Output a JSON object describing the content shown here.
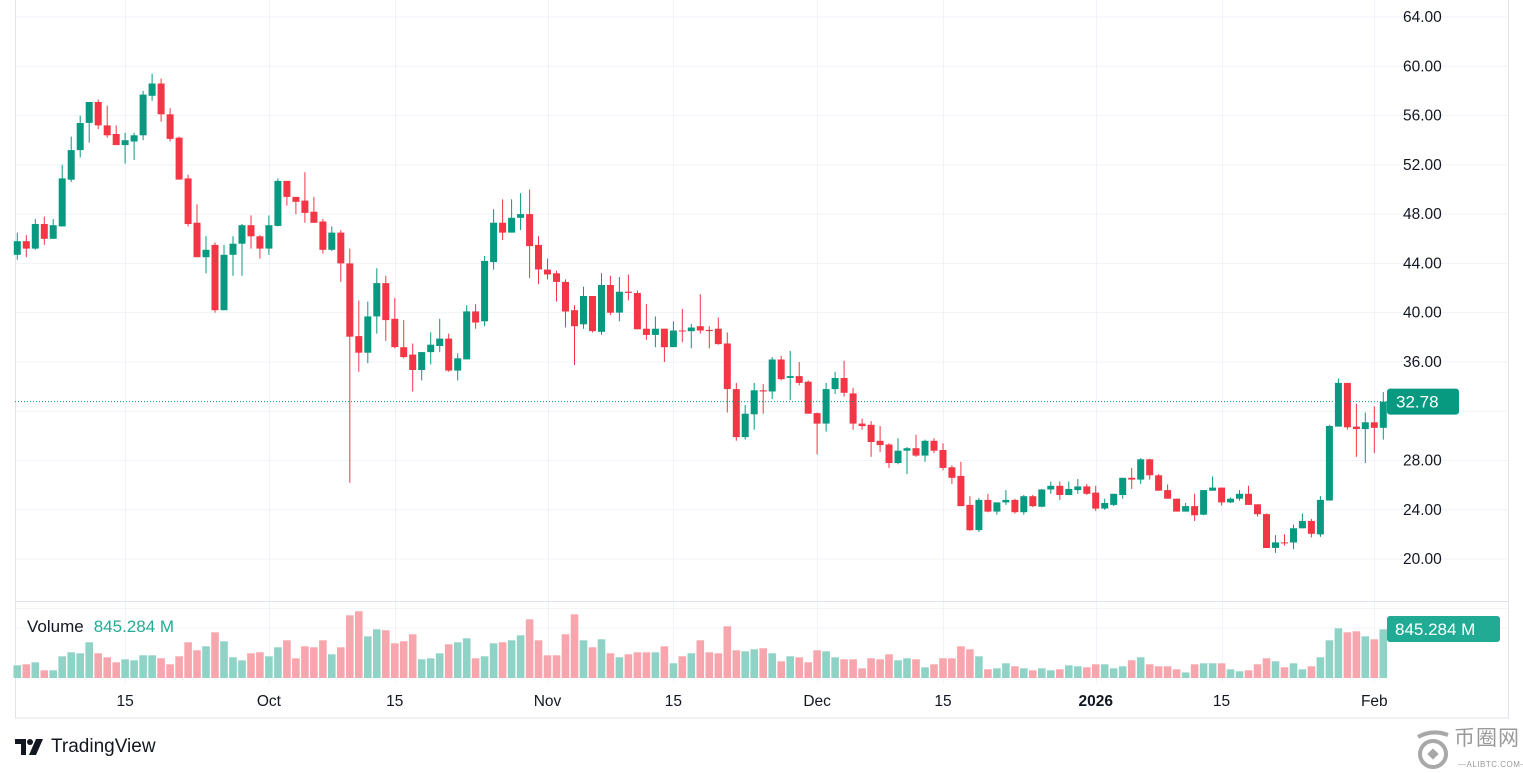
{
  "chart_data": {
    "type": "candlestick",
    "interval": "1D",
    "colors": {
      "up": "#089981",
      "down": "#f23645",
      "up_volume": "#8fd3c6",
      "down_volume": "#f8a6ad",
      "last_price_badge": "#089981",
      "volume_badge": "#22ab94",
      "grid": "#f0f3fa"
    },
    "y_ticks": [
      "64.00",
      "60.00",
      "56.00",
      "52.00",
      "48.00",
      "44.00",
      "40.00",
      "36.00",
      "28.00",
      "24.00",
      "20.00"
    ],
    "y_tick_values": [
      64,
      60,
      56,
      52,
      48,
      44,
      40,
      36,
      28,
      24,
      20
    ],
    "ylim": [
      16,
      65.4
    ],
    "x_ticks": [
      {
        "label": "15",
        "date": "2025-09-15",
        "bold": false
      },
      {
        "label": "Oct",
        "date": "2025-10-01",
        "bold": false
      },
      {
        "label": "15",
        "date": "2025-10-15",
        "bold": false
      },
      {
        "label": "Nov",
        "date": "2025-11-01",
        "bold": false
      },
      {
        "label": "15",
        "date": "2025-11-15",
        "bold": false
      },
      {
        "label": "Dec",
        "date": "2025-12-01",
        "bold": false
      },
      {
        "label": "15",
        "date": "2025-12-15",
        "bold": false
      },
      {
        "label": "2026",
        "date": "2026-01-01",
        "bold": true
      },
      {
        "label": "15",
        "date": "2026-01-15",
        "bold": false
      },
      {
        "label": "Feb",
        "date": "2026-02-01",
        "bold": false
      }
    ],
    "last_price": "32.78",
    "last_price_value": 32.78,
    "volume_label": "Volume",
    "volume_value": "845.284 M",
    "volume_unit": "M",
    "columns": [
      "date",
      "open",
      "high",
      "low",
      "close",
      "volume"
    ],
    "candles": [
      [
        "2025-09-03",
        44.7,
        46.5,
        44.3,
        45.8,
        220
      ],
      [
        "2025-09-04",
        45.8,
        46.3,
        44.5,
        45.2,
        237
      ],
      [
        "2025-09-05",
        45.2,
        47.6,
        45.1,
        47.2,
        272
      ],
      [
        "2025-09-06",
        47.2,
        47.8,
        45.5,
        46.0,
        133
      ],
      [
        "2025-09-07",
        46.0,
        47.6,
        46.0,
        47.1,
        133
      ],
      [
        "2025-09-08",
        47.0,
        52.0,
        47.0,
        50.9,
        376
      ],
      [
        "2025-09-09",
        50.8,
        54.3,
        50.6,
        53.2,
        446
      ],
      [
        "2025-09-10",
        53.2,
        56.0,
        52.6,
        55.4,
        428
      ],
      [
        "2025-09-11",
        55.4,
        57.1,
        53.8,
        57.1,
        620
      ],
      [
        "2025-09-12",
        57.1,
        57.3,
        54.9,
        55.2,
        428
      ],
      [
        "2025-09-13",
        55.2,
        56.8,
        54.2,
        54.4,
        359
      ],
      [
        "2025-09-14",
        54.5,
        55.2,
        53.6,
        53.6,
        272
      ],
      [
        "2025-09-15",
        53.6,
        54.6,
        52.1,
        54.0,
        324
      ],
      [
        "2025-09-16",
        53.9,
        54.6,
        52.4,
        54.4,
        307
      ],
      [
        "2025-09-17",
        54.4,
        58.0,
        54.0,
        57.7,
        394
      ],
      [
        "2025-09-18",
        57.6,
        59.4,
        57.2,
        58.6,
        394
      ],
      [
        "2025-09-19",
        58.6,
        59.0,
        55.5,
        56.1,
        342
      ],
      [
        "2025-09-20",
        56.1,
        56.6,
        53.9,
        54.1,
        237
      ],
      [
        "2025-09-21",
        54.2,
        54.3,
        50.8,
        50.8,
        376
      ],
      [
        "2025-09-22",
        50.9,
        51.2,
        47.0,
        47.2,
        620
      ],
      [
        "2025-09-23",
        47.3,
        48.8,
        44.5,
        44.5,
        481
      ],
      [
        "2025-09-24",
        44.5,
        46.2,
        43.2,
        45.1,
        550
      ],
      [
        "2025-09-25",
        45.5,
        45.7,
        40.0,
        40.2,
        793
      ],
      [
        "2025-09-26",
        40.2,
        45.5,
        40.2,
        44.7,
        637
      ],
      [
        "2025-09-27",
        44.7,
        46.2,
        43.0,
        45.6,
        359
      ],
      [
        "2025-09-28",
        45.6,
        47.2,
        43.0,
        47.1,
        307
      ],
      [
        "2025-09-29",
        47.1,
        47.9,
        45.2,
        46.2,
        428
      ],
      [
        "2025-09-30",
        46.2,
        46.3,
        44.4,
        45.2,
        446
      ],
      [
        "2025-10-01",
        45.2,
        47.9,
        44.7,
        47.1,
        376
      ],
      [
        "2025-10-02",
        47.05,
        50.9,
        47.0,
        50.7,
        533
      ],
      [
        "2025-10-03",
        50.7,
        50.7,
        48.7,
        49.4,
        654
      ],
      [
        "2025-10-04",
        49.4,
        49.4,
        48.0,
        49.0,
        342
      ],
      [
        "2025-10-05",
        49.1,
        51.4,
        47.3,
        48.1,
        550
      ],
      [
        "2025-10-06",
        48.2,
        49.4,
        47.3,
        47.3,
        533
      ],
      [
        "2025-10-07",
        47.4,
        47.6,
        44.8,
        45.1,
        654
      ],
      [
        "2025-10-08",
        45.1,
        47.0,
        45.0,
        46.5,
        411
      ],
      [
        "2025-10-09",
        46.5,
        46.7,
        42.5,
        44.0,
        533
      ],
      [
        "2025-10-10",
        44.0,
        45.2,
        26.2,
        38.05,
        1089
      ],
      [
        "2025-10-11",
        38.1,
        41.0,
        35.2,
        36.75,
        1158
      ],
      [
        "2025-10-12",
        36.75,
        40.9,
        35.9,
        39.7,
        724
      ],
      [
        "2025-10-13",
        39.7,
        43.6,
        38.3,
        42.4,
        845
      ],
      [
        "2025-10-14",
        42.4,
        43.0,
        37.7,
        39.4,
        828
      ],
      [
        "2025-10-15",
        39.5,
        41.2,
        37.1,
        37.2,
        602
      ],
      [
        "2025-10-16",
        37.2,
        39.4,
        36.3,
        36.4,
        637
      ],
      [
        "2025-10-17",
        36.6,
        37.5,
        33.6,
        35.35,
        758
      ],
      [
        "2025-10-18",
        35.35,
        36.8,
        34.5,
        36.8,
        324
      ],
      [
        "2025-10-19",
        36.8,
        38.4,
        35.8,
        37.4,
        342
      ],
      [
        "2025-10-20",
        37.3,
        39.5,
        36.8,
        37.9,
        428
      ],
      [
        "2025-10-21",
        37.9,
        38.3,
        35.2,
        35.3,
        585
      ],
      [
        "2025-10-22",
        35.3,
        36.7,
        34.5,
        36.3,
        620
      ],
      [
        "2025-10-23",
        36.2,
        40.6,
        36.2,
        40.1,
        689
      ],
      [
        "2025-10-24",
        40.1,
        40.7,
        38.7,
        39.2,
        342
      ],
      [
        "2025-10-25",
        39.3,
        44.6,
        38.9,
        44.2,
        376
      ],
      [
        "2025-10-26",
        44.1,
        48.4,
        43.5,
        47.3,
        602
      ],
      [
        "2025-10-27",
        47.3,
        49.2,
        45.9,
        46.5,
        620
      ],
      [
        "2025-10-28",
        46.5,
        49.2,
        46.5,
        47.7,
        654
      ],
      [
        "2025-10-29",
        47.7,
        49.7,
        46.7,
        48.0,
        741
      ],
      [
        "2025-10-30",
        48.0,
        50.0,
        42.8,
        45.4,
        1019
      ],
      [
        "2025-10-31",
        45.5,
        46.2,
        42.3,
        43.5,
        654
      ],
      [
        "2025-11-01",
        43.5,
        44.4,
        42.7,
        43.1,
        394
      ],
      [
        "2025-11-02",
        43.2,
        43.4,
        40.9,
        42.5,
        394
      ],
      [
        "2025-11-03",
        42.5,
        42.7,
        38.8,
        40.1,
        758
      ],
      [
        "2025-11-04",
        40.2,
        40.6,
        35.75,
        38.9,
        1106
      ],
      [
        "2025-11-05",
        39.05,
        42.1,
        38.7,
        41.35,
        654
      ],
      [
        "2025-11-06",
        41.35,
        41.35,
        38.4,
        38.5,
        533
      ],
      [
        "2025-11-07",
        38.45,
        43.2,
        38.2,
        42.25,
        672
      ],
      [
        "2025-11-08",
        42.25,
        43.0,
        39.8,
        40.0,
        428
      ],
      [
        "2025-11-09",
        40.0,
        42.9,
        39.3,
        41.7,
        359
      ],
      [
        "2025-11-10",
        41.7,
        43.1,
        41.0,
        41.6,
        411
      ],
      [
        "2025-11-11",
        41.6,
        41.8,
        38.65,
        38.65,
        446
      ],
      [
        "2025-11-12",
        38.7,
        40.7,
        37.8,
        38.2,
        446
      ],
      [
        "2025-11-13",
        38.2,
        39.7,
        37.2,
        38.7,
        446
      ],
      [
        "2025-11-14",
        38.7,
        38.7,
        36.0,
        37.2,
        550
      ],
      [
        "2025-11-15",
        37.2,
        39.3,
        37.2,
        38.55,
        255
      ],
      [
        "2025-11-16",
        38.55,
        40.3,
        37.6,
        38.5,
        376
      ],
      [
        "2025-11-17",
        38.5,
        39.1,
        37.1,
        38.8,
        428
      ],
      [
        "2025-11-18",
        38.9,
        41.5,
        38.3,
        38.55,
        654
      ],
      [
        "2025-11-19",
        38.6,
        38.9,
        37.1,
        38.5,
        446
      ],
      [
        "2025-11-20",
        38.7,
        39.6,
        37.4,
        37.45,
        428
      ],
      [
        "2025-11-21",
        37.5,
        38.4,
        31.9,
        33.8,
        897
      ],
      [
        "2025-11-22",
        33.8,
        34.3,
        29.6,
        29.9,
        481
      ],
      [
        "2025-11-23",
        29.9,
        32.5,
        29.7,
        31.8,
        463
      ],
      [
        "2025-11-24",
        31.75,
        34.3,
        30.5,
        33.7,
        498
      ],
      [
        "2025-11-25",
        33.7,
        34.2,
        31.8,
        33.6,
        515
      ],
      [
        "2025-11-26",
        33.6,
        36.4,
        33.0,
        36.2,
        428
      ],
      [
        "2025-11-27",
        36.2,
        36.5,
        34.5,
        34.6,
        290
      ],
      [
        "2025-11-28",
        34.7,
        36.9,
        32.9,
        34.85,
        376
      ],
      [
        "2025-11-29",
        34.85,
        36.0,
        34.1,
        34.3,
        359
      ],
      [
        "2025-11-30",
        34.4,
        34.5,
        31.8,
        31.8,
        272
      ],
      [
        "2025-12-01",
        31.85,
        31.9,
        28.5,
        31.0,
        481
      ],
      [
        "2025-12-02",
        31.0,
        34.3,
        30.35,
        33.8,
        463
      ],
      [
        "2025-12-03",
        33.8,
        35.2,
        33.4,
        34.7,
        359
      ],
      [
        "2025-12-04",
        34.7,
        36.1,
        33.2,
        33.5,
        324
      ],
      [
        "2025-12-05",
        33.45,
        33.9,
        30.5,
        31.0,
        324
      ],
      [
        "2025-12-06",
        31.0,
        31.4,
        30.5,
        30.8,
        168
      ],
      [
        "2025-12-07",
        30.9,
        31.2,
        28.3,
        29.5,
        342
      ],
      [
        "2025-12-08",
        29.6,
        30.8,
        28.7,
        29.25,
        324
      ],
      [
        "2025-12-09",
        29.3,
        29.4,
        27.4,
        27.8,
        411
      ],
      [
        "2025-12-10",
        27.8,
        29.8,
        27.7,
        28.8,
        307
      ],
      [
        "2025-12-11",
        28.8,
        29.1,
        26.9,
        29.0,
        342
      ],
      [
        "2025-12-12",
        29.0,
        30.1,
        28.3,
        28.4,
        324
      ],
      [
        "2025-12-13",
        28.4,
        29.7,
        27.9,
        29.6,
        185
      ],
      [
        "2025-12-14",
        29.6,
        29.8,
        28.6,
        28.8,
        237
      ],
      [
        "2025-12-15",
        28.85,
        29.4,
        27.2,
        27.4,
        342
      ],
      [
        "2025-12-16",
        27.45,
        27.6,
        26.1,
        26.6,
        342
      ],
      [
        "2025-12-17",
        26.75,
        27.9,
        24.3,
        24.3,
        550
      ],
      [
        "2025-12-18",
        24.4,
        25.1,
        22.3,
        22.35,
        498
      ],
      [
        "2025-12-19",
        22.35,
        24.95,
        22.2,
        24.8,
        376
      ],
      [
        "2025-12-20",
        24.8,
        25.3,
        23.8,
        23.85,
        151
      ],
      [
        "2025-12-21",
        23.85,
        24.6,
        23.6,
        24.6,
        168
      ],
      [
        "2025-12-22",
        24.6,
        25.6,
        24.4,
        24.8,
        255
      ],
      [
        "2025-12-23",
        24.8,
        24.9,
        23.7,
        23.8,
        203
      ],
      [
        "2025-12-24",
        23.8,
        25.2,
        23.6,
        25.1,
        168
      ],
      [
        "2025-12-25",
        25.1,
        25.2,
        24.2,
        24.3,
        133
      ],
      [
        "2025-12-26",
        24.25,
        25.7,
        24.2,
        25.65,
        168
      ],
      [
        "2025-12-27",
        25.65,
        26.3,
        25.3,
        25.95,
        133
      ],
      [
        "2025-12-28",
        25.95,
        26.3,
        24.8,
        25.2,
        151
      ],
      [
        "2025-12-29",
        25.2,
        26.3,
        25.2,
        25.7,
        220
      ],
      [
        "2025-12-30",
        25.6,
        26.5,
        25.3,
        25.9,
        203
      ],
      [
        "2025-12-31",
        25.9,
        26.1,
        25.2,
        25.3,
        185
      ],
      [
        "2026-01-01",
        25.4,
        25.95,
        23.9,
        24.1,
        237
      ],
      [
        "2026-01-02",
        24.1,
        24.9,
        24.0,
        24.55,
        237
      ],
      [
        "2026-01-03",
        24.4,
        25.3,
        24.3,
        25.3,
        168
      ],
      [
        "2026-01-04",
        25.2,
        26.6,
        24.9,
        26.6,
        203
      ],
      [
        "2026-01-05",
        26.6,
        27.4,
        25.7,
        26.45,
        307
      ],
      [
        "2026-01-06",
        26.45,
        28.2,
        26.1,
        28.1,
        359
      ],
      [
        "2026-01-07",
        28.1,
        28.15,
        26.45,
        26.8,
        237
      ],
      [
        "2026-01-08",
        26.8,
        26.9,
        25.55,
        25.55,
        203
      ],
      [
        "2026-01-09",
        25.6,
        26.05,
        24.9,
        24.9,
        203
      ],
      [
        "2026-01-10",
        24.9,
        24.9,
        23.85,
        23.85,
        151
      ],
      [
        "2026-01-11",
        23.85,
        24.55,
        23.85,
        24.3,
        98
      ],
      [
        "2026-01-12",
        24.3,
        25.3,
        23.1,
        23.55,
        237
      ],
      [
        "2026-01-13",
        23.6,
        25.6,
        23.55,
        25.6,
        255
      ],
      [
        "2026-01-14",
        25.55,
        26.7,
        25.55,
        25.8,
        255
      ],
      [
        "2026-01-15",
        25.8,
        25.8,
        24.35,
        24.6,
        255
      ],
      [
        "2026-01-16",
        24.6,
        25.0,
        24.55,
        24.9,
        151
      ],
      [
        "2026-01-17",
        24.9,
        25.6,
        24.75,
        25.3,
        116
      ],
      [
        "2026-01-18",
        25.3,
        25.95,
        24.4,
        24.4,
        133
      ],
      [
        "2026-01-19",
        24.45,
        24.45,
        23.45,
        23.65,
        237
      ],
      [
        "2026-01-20",
        23.65,
        23.7,
        20.9,
        20.9,
        342
      ],
      [
        "2026-01-21",
        20.9,
        21.95,
        20.5,
        21.35,
        290
      ],
      [
        "2026-01-22",
        21.35,
        22.0,
        21.1,
        21.3,
        185
      ],
      [
        "2026-01-23",
        21.35,
        22.8,
        20.8,
        22.5,
        255
      ],
      [
        "2026-01-24",
        22.5,
        23.7,
        22.5,
        23.1,
        151
      ],
      [
        "2026-01-25",
        23.1,
        23.25,
        21.75,
        22.05,
        203
      ],
      [
        "2026-01-26",
        22.0,
        25.1,
        21.8,
        24.8,
        359
      ],
      [
        "2026-01-27",
        24.75,
        30.9,
        24.75,
        30.8,
        654
      ],
      [
        "2026-01-28",
        30.75,
        34.65,
        30.75,
        34.3,
        863
      ],
      [
        "2026-01-29",
        34.3,
        34.3,
        30.5,
        30.7,
        793
      ],
      [
        "2026-01-30",
        30.75,
        32.6,
        28.3,
        30.55,
        811
      ],
      [
        "2026-01-31",
        30.55,
        31.9,
        27.8,
        31.1,
        724
      ],
      [
        "2026-02-01",
        31.1,
        32.4,
        28.6,
        30.65,
        672
      ],
      [
        "2026-02-02",
        30.65,
        33.55,
        29.7,
        32.78,
        845.284
      ]
    ]
  },
  "branding": {
    "logo_text": "TradingView",
    "watermark_cn": "币圈网",
    "watermark_en": "—ALIBTC.COM—"
  }
}
